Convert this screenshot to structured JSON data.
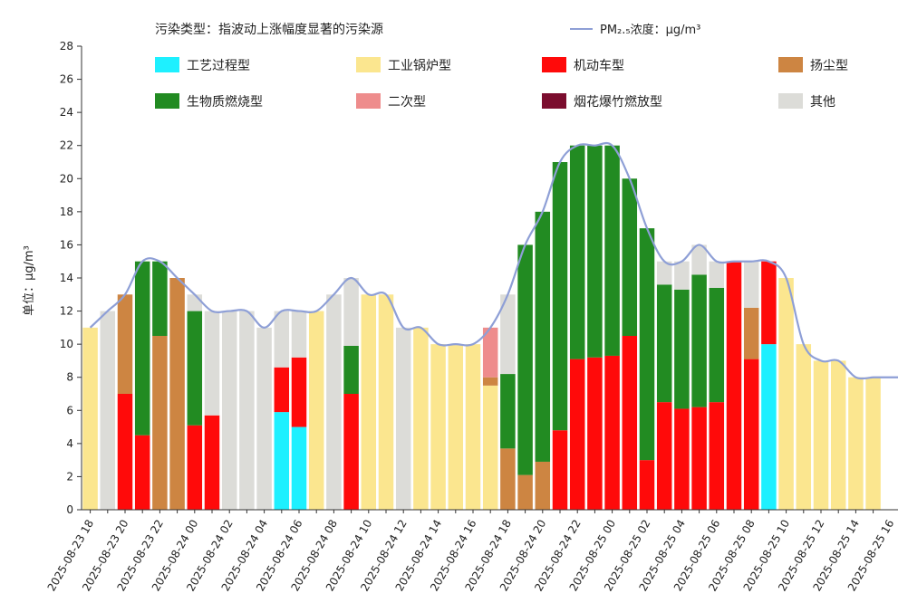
{
  "chart_data": {
    "type": "bar",
    "stacked": true,
    "legend_title": "污染类型：指波动上涨幅度显著的污染源",
    "line_legend_label": "PM₂.₅浓度：μg/m³",
    "ylabel": "单位：μg/m³",
    "ylim": [
      0,
      28
    ],
    "yticks": [
      0,
      2,
      4,
      6,
      8,
      10,
      12,
      14,
      16,
      18,
      20,
      22,
      24,
      26,
      28
    ],
    "legend_position": "top",
    "grid": false,
    "line_color": "#8e9fd6",
    "series_meta": [
      {
        "key": "process",
        "name": "工艺过程型",
        "color": "#1ef0ff"
      },
      {
        "key": "boiler",
        "name": "工业锅炉型",
        "color": "#fbe68f"
      },
      {
        "key": "vehicle",
        "name": "机动车型",
        "color": "#ff0a0a"
      },
      {
        "key": "dust",
        "name": "扬尘型",
        "color": "#cd8542"
      },
      {
        "key": "biomass",
        "name": "生物质燃烧型",
        "color": "#228b22"
      },
      {
        "key": "secondary",
        "name": "二次型",
        "color": "#ee8c8c"
      },
      {
        "key": "firework",
        "name": "烟花爆竹燃放型",
        "color": "#7b0d2e"
      },
      {
        "key": "other",
        "name": "其他",
        "color": "#dcdcd8"
      }
    ],
    "x_labels": [
      "2025-08-23 18",
      "2025-08-23 20",
      "2025-08-23 22",
      "2025-08-24 00",
      "2025-08-24 02",
      "2025-08-24 04",
      "2025-08-24 06",
      "2025-08-24 08",
      "2025-08-24 10",
      "2025-08-24 12",
      "2025-08-24 14",
      "2025-08-24 16",
      "2025-08-24 18",
      "2025-08-24 20",
      "2025-08-24 22",
      "2025-08-25 00",
      "2025-08-25 02",
      "2025-08-25 04",
      "2025-08-25 06",
      "2025-08-25 08",
      "2025-08-25 10",
      "2025-08-25 12",
      "2025-08-25 14",
      "2025-08-25 16"
    ],
    "bars": [
      {
        "hour": "2025-08-23 18",
        "pm25": 11,
        "stack": [
          [
            "boiler",
            11
          ]
        ]
      },
      {
        "hour": "2025-08-23 19",
        "pm25": 12,
        "stack": [
          [
            "other",
            12
          ]
        ]
      },
      {
        "hour": "2025-08-23 20",
        "pm25": 13,
        "stack": [
          [
            "vehicle",
            7
          ],
          [
            "dust",
            6
          ]
        ]
      },
      {
        "hour": "2025-08-23 21",
        "pm25": 15,
        "stack": [
          [
            "vehicle",
            4.5
          ],
          [
            "biomass",
            10.5
          ]
        ]
      },
      {
        "hour": "2025-08-23 22",
        "pm25": 15,
        "stack": [
          [
            "dust",
            10.5
          ],
          [
            "biomass",
            4.5
          ]
        ]
      },
      {
        "hour": "2025-08-23 23",
        "pm25": 14,
        "stack": [
          [
            "dust",
            14
          ]
        ]
      },
      {
        "hour": "2025-08-24 00",
        "pm25": 13,
        "stack": [
          [
            "vehicle",
            5.1
          ],
          [
            "biomass",
            6.9
          ],
          [
            "other",
            1
          ]
        ]
      },
      {
        "hour": "2025-08-24 01",
        "pm25": 12,
        "stack": [
          [
            "vehicle",
            5.7
          ],
          [
            "other",
            6.3
          ]
        ]
      },
      {
        "hour": "2025-08-24 02",
        "pm25": 12,
        "stack": [
          [
            "other",
            12
          ]
        ]
      },
      {
        "hour": "2025-08-24 03",
        "pm25": 12,
        "stack": [
          [
            "other",
            12
          ]
        ]
      },
      {
        "hour": "2025-08-24 04",
        "pm25": 11,
        "stack": [
          [
            "other",
            11
          ]
        ]
      },
      {
        "hour": "2025-08-24 05",
        "pm25": 12,
        "stack": [
          [
            "process",
            5.9
          ],
          [
            "vehicle",
            2.7
          ],
          [
            "other",
            3.4
          ]
        ]
      },
      {
        "hour": "2025-08-24 06",
        "pm25": 12,
        "stack": [
          [
            "process",
            5
          ],
          [
            "vehicle",
            4.2
          ],
          [
            "other",
            2.8
          ]
        ]
      },
      {
        "hour": "2025-08-24 07",
        "pm25": 12,
        "stack": [
          [
            "boiler",
            12
          ]
        ]
      },
      {
        "hour": "2025-08-24 08",
        "pm25": 13,
        "stack": [
          [
            "other",
            13
          ]
        ]
      },
      {
        "hour": "2025-08-24 09",
        "pm25": 14,
        "stack": [
          [
            "vehicle",
            7
          ],
          [
            "biomass",
            2.9
          ],
          [
            "other",
            4.1
          ]
        ]
      },
      {
        "hour": "2025-08-24 10",
        "pm25": 13,
        "stack": [
          [
            "boiler",
            13
          ]
        ]
      },
      {
        "hour": "2025-08-24 11",
        "pm25": 13,
        "stack": [
          [
            "boiler",
            13
          ]
        ]
      },
      {
        "hour": "2025-08-24 12",
        "pm25": 11,
        "stack": [
          [
            "other",
            11
          ]
        ]
      },
      {
        "hour": "2025-08-24 13",
        "pm25": 11,
        "stack": [
          [
            "boiler",
            11
          ]
        ]
      },
      {
        "hour": "2025-08-24 14",
        "pm25": 10,
        "stack": [
          [
            "boiler",
            10
          ]
        ]
      },
      {
        "hour": "2025-08-24 15",
        "pm25": 10,
        "stack": [
          [
            "boiler",
            10
          ]
        ]
      },
      {
        "hour": "2025-08-24 16",
        "pm25": 10,
        "stack": [
          [
            "boiler",
            10
          ]
        ]
      },
      {
        "hour": "2025-08-24 17",
        "pm25": 11,
        "stack": [
          [
            "boiler",
            7.5
          ],
          [
            "dust",
            0.5
          ],
          [
            "secondary",
            3
          ]
        ]
      },
      {
        "hour": "2025-08-24 18",
        "pm25": 13,
        "stack": [
          [
            "dust",
            3.7
          ],
          [
            "biomass",
            4.5
          ],
          [
            "other",
            4.8
          ]
        ]
      },
      {
        "hour": "2025-08-24 19",
        "pm25": 16,
        "stack": [
          [
            "dust",
            2.1
          ],
          [
            "biomass",
            13.9
          ]
        ]
      },
      {
        "hour": "2025-08-24 20",
        "pm25": 18,
        "stack": [
          [
            "dust",
            2.9
          ],
          [
            "biomass",
            15.1
          ]
        ]
      },
      {
        "hour": "2025-08-24 21",
        "pm25": 21,
        "stack": [
          [
            "vehicle",
            4.8
          ],
          [
            "biomass",
            16.2
          ]
        ]
      },
      {
        "hour": "2025-08-24 22",
        "pm25": 22,
        "stack": [
          [
            "vehicle",
            9.1
          ],
          [
            "biomass",
            12.9
          ]
        ]
      },
      {
        "hour": "2025-08-24 23",
        "pm25": 22,
        "stack": [
          [
            "vehicle",
            9.2
          ],
          [
            "biomass",
            12.8
          ]
        ]
      },
      {
        "hour": "2025-08-25 00",
        "pm25": 22,
        "stack": [
          [
            "vehicle",
            9.3
          ],
          [
            "biomass",
            12.7
          ]
        ]
      },
      {
        "hour": "2025-08-25 01",
        "pm25": 20,
        "stack": [
          [
            "vehicle",
            10.5
          ],
          [
            "biomass",
            9.5
          ]
        ]
      },
      {
        "hour": "2025-08-25 02",
        "pm25": 17,
        "stack": [
          [
            "vehicle",
            3
          ],
          [
            "biomass",
            14
          ]
        ]
      },
      {
        "hour": "2025-08-25 03",
        "pm25": 15,
        "stack": [
          [
            "vehicle",
            6.5
          ],
          [
            "biomass",
            7.1
          ],
          [
            "other",
            1.4
          ]
        ]
      },
      {
        "hour": "2025-08-25 04",
        "pm25": 15,
        "stack": [
          [
            "vehicle",
            6.1
          ],
          [
            "biomass",
            7.2
          ],
          [
            "other",
            1.7
          ]
        ]
      },
      {
        "hour": "2025-08-25 05",
        "pm25": 16,
        "stack": [
          [
            "vehicle",
            6.2
          ],
          [
            "biomass",
            8
          ],
          [
            "other",
            1.8
          ]
        ]
      },
      {
        "hour": "2025-08-25 06",
        "pm25": 15,
        "stack": [
          [
            "vehicle",
            6.5
          ],
          [
            "biomass",
            6.9
          ],
          [
            "other",
            1.6
          ]
        ]
      },
      {
        "hour": "2025-08-25 07",
        "pm25": 15,
        "stack": [
          [
            "vehicle",
            15
          ]
        ]
      },
      {
        "hour": "2025-08-25 08",
        "pm25": 15,
        "stack": [
          [
            "vehicle",
            9.1
          ],
          [
            "dust",
            3.1
          ],
          [
            "other",
            2.8
          ]
        ]
      },
      {
        "hour": "2025-08-25 09",
        "pm25": 15,
        "stack": [
          [
            "process",
            10
          ],
          [
            "vehicle",
            5
          ]
        ]
      },
      {
        "hour": "2025-08-25 10",
        "pm25": 14,
        "stack": [
          [
            "boiler",
            14
          ]
        ]
      },
      {
        "hour": "2025-08-25 11",
        "pm25": 10,
        "stack": [
          [
            "boiler",
            10
          ]
        ]
      },
      {
        "hour": "2025-08-25 12",
        "pm25": 9,
        "stack": [
          [
            "boiler",
            9
          ]
        ]
      },
      {
        "hour": "2025-08-25 13",
        "pm25": 9,
        "stack": [
          [
            "boiler",
            9
          ]
        ]
      },
      {
        "hour": "2025-08-25 14",
        "pm25": 8,
        "stack": [
          [
            "boiler",
            8
          ]
        ]
      },
      {
        "hour": "2025-08-25 15",
        "pm25": 8,
        "stack": [
          [
            "boiler",
            8
          ]
        ]
      }
    ]
  }
}
